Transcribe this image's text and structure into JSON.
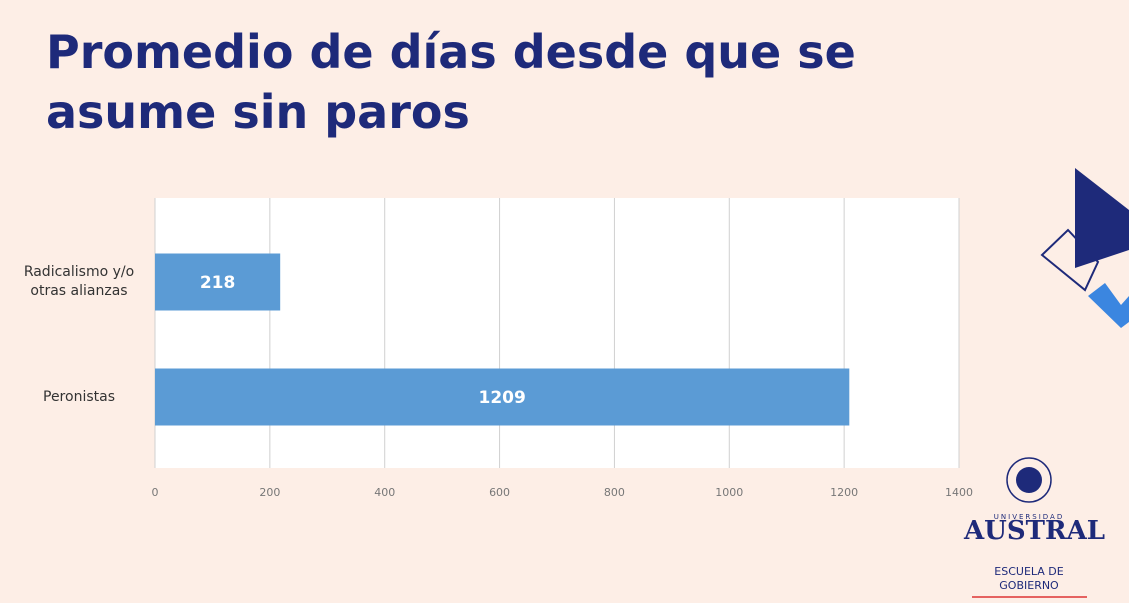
{
  "chart_data": {
    "type": "barh",
    "title": "Promedio de días desde que se asume sin paros",
    "categories": [
      "Radicalismo y/o otras alianzas",
      "Peronistas"
    ],
    "values": [
      218,
      1209
    ],
    "color": "#5b9bd5",
    "xlim": [
      0,
      1400
    ],
    "xticks": [
      0,
      200,
      400,
      600,
      800,
      1000,
      1200,
      1400
    ],
    "grid": true
  },
  "logo": {
    "university": "UNIVERSIDAD",
    "name": "AUSTRAL",
    "school": "ESCUELA DE GOBIERNO"
  }
}
